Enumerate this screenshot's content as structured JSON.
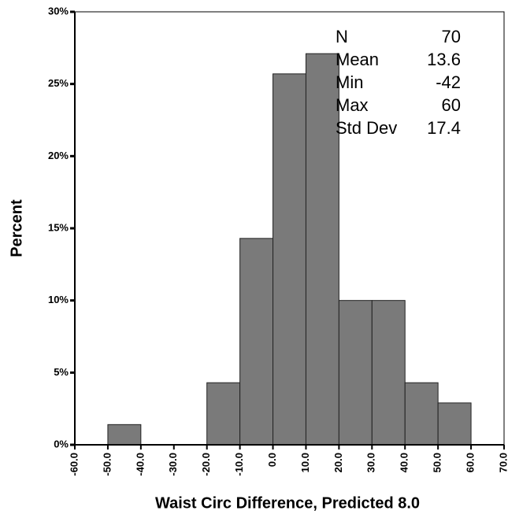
{
  "chart_data": {
    "type": "histogram",
    "xlabel": "Waist Circ Difference, Predicted 8.0",
    "ylabel": "Percent",
    "bins": [
      -50,
      -40,
      -30,
      -20,
      -10,
      0,
      10,
      20,
      30,
      40,
      50,
      60
    ],
    "values": [
      1.4,
      0,
      0,
      4.3,
      14.3,
      25.7,
      27.1,
      10,
      10,
      4.3,
      2.9
    ],
    "color": "#7a7a7a",
    "xlim": [
      -60,
      70
    ],
    "ylim": [
      0,
      30
    ],
    "xticks": [
      {
        "value": -60,
        "label": "-60.0"
      },
      {
        "value": -50,
        "label": "-50.0"
      },
      {
        "value": -40,
        "label": "-40.0"
      },
      {
        "value": -30,
        "label": "-30.0"
      },
      {
        "value": -20,
        "label": "-20.0"
      },
      {
        "value": -10,
        "label": "-10.0"
      },
      {
        "value": 0,
        "label": "0.0"
      },
      {
        "value": 10,
        "label": "10.0"
      },
      {
        "value": 20,
        "label": "20.0"
      },
      {
        "value": 30,
        "label": "30.0"
      },
      {
        "value": 40,
        "label": "40.0"
      },
      {
        "value": 50,
        "label": "50.0"
      },
      {
        "value": 60,
        "label": "60.0"
      },
      {
        "value": 70,
        "label": "70.0"
      }
    ],
    "yticks": [
      {
        "value": 0,
        "label": "0%"
      },
      {
        "value": 5,
        "label": "5%"
      },
      {
        "value": 10,
        "label": "10%"
      },
      {
        "value": 15,
        "label": "15%"
      },
      {
        "value": 20,
        "label": "20%"
      },
      {
        "value": 25,
        "label": "25%"
      },
      {
        "value": 30,
        "label": "30%"
      }
    ],
    "stats": [
      {
        "label": "N",
        "value": "70"
      },
      {
        "label": "Mean",
        "value": "13.6"
      },
      {
        "label": "Min",
        "value": "-42"
      },
      {
        "label": "Max",
        "value": "60"
      },
      {
        "label": "Std Dev",
        "value": "17.4"
      }
    ]
  }
}
